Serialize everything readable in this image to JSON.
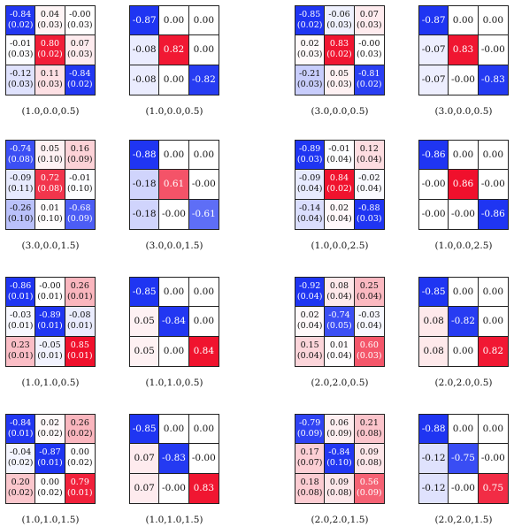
{
  "colors": {
    "negative_hex": "#1f35f2",
    "positive_hex": "#f0102c",
    "neutral_hex": "#ffffff"
  },
  "panels": [
    {
      "caption": "(1.0,0.0,0.5)",
      "values": [
        [
          -0.84,
          0.04,
          -0.0
        ],
        [
          -0.01,
          0.8,
          0.07
        ],
        [
          -0.12,
          0.11,
          -0.84
        ]
      ],
      "labels": [
        [
          "-0.84",
          "0.04",
          "-0.00"
        ],
        [
          "-0.01",
          "0.80",
          "0.07"
        ],
        [
          "-0.12",
          "0.11",
          "-0.84"
        ]
      ],
      "errors": [
        [
          "(0.02)",
          "(0.03)",
          "(0.03)"
        ],
        [
          "(0.03)",
          "(0.02)",
          "(0.03)"
        ],
        [
          "(0.03)",
          "(0.03)",
          "(0.02)"
        ]
      ]
    },
    {
      "caption": "(1.0,0.0,0.5)",
      "values": [
        [
          -0.87,
          0.0,
          0.0
        ],
        [
          -0.08,
          0.82,
          0.0
        ],
        [
          -0.08,
          0.0,
          -0.82
        ]
      ],
      "labels": [
        [
          "-0.87",
          "0.00",
          "0.00"
        ],
        [
          "-0.08",
          "0.82",
          "0.00"
        ],
        [
          "-0.08",
          "0.00",
          "-0.82"
        ]
      ]
    },
    {
      "caption": "(3.0,0.0,0.5)",
      "values": [
        [
          -0.85,
          -0.06,
          0.07
        ],
        [
          0.02,
          0.83,
          -0.0
        ],
        [
          -0.21,
          0.05,
          -0.81
        ]
      ],
      "labels": [
        [
          "-0.85",
          "-0.06",
          "0.07"
        ],
        [
          "0.02",
          "0.83",
          "-0.00"
        ],
        [
          "-0.21",
          "0.05",
          "-0.81"
        ]
      ],
      "errors": [
        [
          "(0.02)",
          "(0.03)",
          "(0.03)"
        ],
        [
          "(0.03)",
          "(0.02)",
          "(0.03)"
        ],
        [
          "(0.03)",
          "(0.03)",
          "(0.02)"
        ]
      ]
    },
    {
      "caption": "(3.0,0.0,0.5)",
      "values": [
        [
          -0.87,
          0.0,
          0.0
        ],
        [
          -0.07,
          0.83,
          -0.0
        ],
        [
          -0.07,
          -0.0,
          -0.83
        ]
      ],
      "labels": [
        [
          "-0.87",
          "0.00",
          "0.00"
        ],
        [
          "-0.07",
          "0.83",
          "-0.00"
        ],
        [
          "-0.07",
          "-0.00",
          "-0.83"
        ]
      ]
    },
    {
      "caption": "(3.0,0.0,1.5)",
      "values": [
        [
          -0.74,
          0.05,
          0.16
        ],
        [
          -0.09,
          0.72,
          -0.01
        ],
        [
          -0.26,
          0.01,
          -0.68
        ]
      ],
      "labels": [
        [
          "-0.74",
          "0.05",
          "0.16"
        ],
        [
          "-0.09",
          "0.72",
          "-0.01"
        ],
        [
          "-0.26",
          "0.01",
          "-0.68"
        ]
      ],
      "errors": [
        [
          "(0.08)",
          "(0.10)",
          "(0.09)"
        ],
        [
          "(0.11)",
          "(0.08)",
          "(0.10)"
        ],
        [
          "(0.10)",
          "(0.10)",
          "(0.09)"
        ]
      ]
    },
    {
      "caption": "(3.0,0.0,1.5)",
      "values": [
        [
          -0.88,
          0.0,
          0.0
        ],
        [
          -0.18,
          0.61,
          -0.0
        ],
        [
          -0.18,
          -0.0,
          -0.61
        ]
      ],
      "labels": [
        [
          "-0.88",
          "0.00",
          "0.00"
        ],
        [
          "-0.18",
          "0.61",
          "-0.00"
        ],
        [
          "-0.18",
          "-0.00",
          "-0.61"
        ]
      ]
    },
    {
      "caption": "(1.0,0.0,2.5)",
      "values": [
        [
          -0.89,
          -0.01,
          0.12
        ],
        [
          -0.09,
          0.84,
          -0.02
        ],
        [
          -0.14,
          0.02,
          -0.88
        ]
      ],
      "labels": [
        [
          "-0.89",
          "-0.01",
          "0.12"
        ],
        [
          "-0.09",
          "0.84",
          "-0.02"
        ],
        [
          "-0.14",
          "0.02",
          "-0.88"
        ]
      ],
      "errors": [
        [
          "(0.03)",
          "(0.04)",
          "(0.04)"
        ],
        [
          "(0.04)",
          "(0.02)",
          "(0.04)"
        ],
        [
          "(0.04)",
          "(0.04)",
          "(0.03)"
        ]
      ]
    },
    {
      "caption": "(1.0,0.0,2.5)",
      "values": [
        [
          -0.86,
          0.0,
          0.0
        ],
        [
          -0.0,
          0.86,
          -0.0
        ],
        [
          -0.0,
          -0.0,
          -0.86
        ]
      ],
      "labels": [
        [
          "-0.86",
          "0.00",
          "0.00"
        ],
        [
          "-0.00",
          "0.86",
          "-0.00"
        ],
        [
          "-0.00",
          "-0.00",
          "-0.86"
        ]
      ]
    },
    {
      "caption": "(1.0,1.0,0.5)",
      "values": [
        [
          -0.86,
          -0.0,
          0.26
        ],
        [
          -0.03,
          -0.89,
          -0.08
        ],
        [
          0.23,
          -0.05,
          0.85
        ]
      ],
      "labels": [
        [
          "-0.86",
          "-0.00",
          "0.26"
        ],
        [
          "-0.03",
          "-0.89",
          "-0.08"
        ],
        [
          "0.23",
          "-0.05",
          "0.85"
        ]
      ],
      "errors": [
        [
          "(0.01)",
          "(0.01)",
          "(0.01)"
        ],
        [
          "(0.01)",
          "(0.01)",
          "(0.01)"
        ],
        [
          "(0.01)",
          "(0.01)",
          "(0.01)"
        ]
      ]
    },
    {
      "caption": "(1.0,1.0,0.5)",
      "values": [
        [
          -0.85,
          0.0,
          0.0
        ],
        [
          0.05,
          -0.84,
          0.0
        ],
        [
          0.05,
          0.0,
          0.84
        ]
      ],
      "labels": [
        [
          "-0.85",
          "0.00",
          "0.00"
        ],
        [
          "0.05",
          "-0.84",
          "0.00"
        ],
        [
          "0.05",
          "0.00",
          "0.84"
        ]
      ]
    },
    {
      "caption": "(2.0,2.0,0.5)",
      "values": [
        [
          -0.92,
          0.08,
          0.25
        ],
        [
          0.02,
          -0.74,
          -0.03
        ],
        [
          0.15,
          0.01,
          0.6
        ]
      ],
      "labels": [
        [
          "-0.92",
          "0.08",
          "0.25"
        ],
        [
          "0.02",
          "-0.74",
          "-0.03"
        ],
        [
          "0.15",
          "0.01",
          "0.60"
        ]
      ],
      "errors": [
        [
          "(0.04)",
          "(0.04)",
          "(0.04)"
        ],
        [
          "(0.04)",
          "(0.05)",
          "(0.04)"
        ],
        [
          "(0.04)",
          "(0.04)",
          "(0.03)"
        ]
      ]
    },
    {
      "caption": "(2.0,2.0,0.5)",
      "values": [
        [
          -0.85,
          0.0,
          0.0
        ],
        [
          0.08,
          -0.82,
          0.0
        ],
        [
          0.08,
          0.0,
          0.82
        ]
      ],
      "labels": [
        [
          "-0.85",
          "0.00",
          "0.00"
        ],
        [
          "0.08",
          "-0.82",
          "0.00"
        ],
        [
          "0.08",
          "0.00",
          "0.82"
        ]
      ]
    },
    {
      "caption": "(1.0,1.0,1.5)",
      "values": [
        [
          -0.84,
          0.02,
          0.26
        ],
        [
          -0.04,
          -0.87,
          0.0
        ],
        [
          0.2,
          0.0,
          0.79
        ]
      ],
      "labels": [
        [
          "-0.84",
          "0.02",
          "0.26"
        ],
        [
          "-0.04",
          "-0.87",
          "0.00"
        ],
        [
          "0.20",
          "0.00",
          "0.79"
        ]
      ],
      "errors": [
        [
          "(0.01)",
          "(0.02)",
          "(0.02)"
        ],
        [
          "(0.02)",
          "(0.01)",
          "(0.02)"
        ],
        [
          "(0.02)",
          "(0.02)",
          "(0.01)"
        ]
      ]
    },
    {
      "caption": "(1.0,1.0,1.5)",
      "values": [
        [
          -0.85,
          0.0,
          0.0
        ],
        [
          0.07,
          -0.83,
          -0.0
        ],
        [
          0.07,
          -0.0,
          0.83
        ]
      ],
      "labels": [
        [
          "-0.85",
          "0.00",
          "0.00"
        ],
        [
          "0.07",
          "-0.83",
          "-0.00"
        ],
        [
          "0.07",
          "-0.00",
          "0.83"
        ]
      ]
    },
    {
      "caption": "(2.0,2.0,1.5)",
      "values": [
        [
          -0.79,
          0.06,
          0.21
        ],
        [
          0.17,
          -0.84,
          0.09
        ],
        [
          0.18,
          0.09,
          0.56
        ]
      ],
      "labels": [
        [
          "-0.79",
          "0.06",
          "0.21"
        ],
        [
          "0.17",
          "-0.84",
          "0.09"
        ],
        [
          "0.18",
          "0.09",
          "0.56"
        ]
      ],
      "errors": [
        [
          "(0.09)",
          "(0.09)",
          "(0.08)"
        ],
        [
          "(0.07)",
          "(0.10)",
          "(0.08)"
        ],
        [
          "(0.08)",
          "(0.08)",
          "(0.09)"
        ]
      ]
    },
    {
      "caption": "(2.0,2.0,1.5)",
      "values": [
        [
          -0.88,
          0.0,
          0.0
        ],
        [
          -0.12,
          -0.75,
          -0.0
        ],
        [
          -0.12,
          -0.0,
          0.75
        ]
      ],
      "labels": [
        [
          "-0.88",
          "0.00",
          "0.00"
        ],
        [
          "-0.12",
          "-0.75",
          "-0.00"
        ],
        [
          "-0.12",
          "-0.00",
          "0.75"
        ]
      ]
    }
  ]
}
